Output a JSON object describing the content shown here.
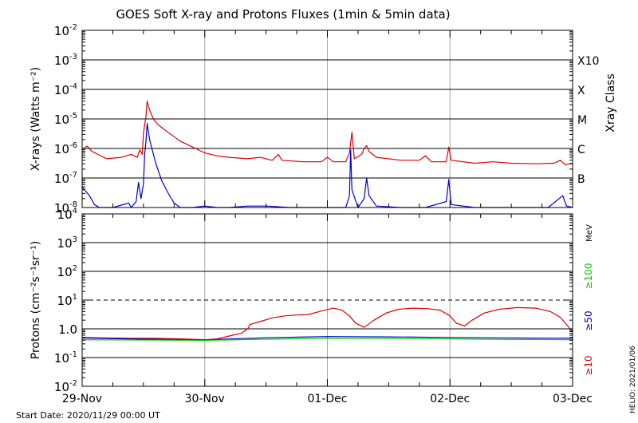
{
  "chart_data": {
    "type": "line",
    "title": "GOES Soft X-ray and Protons Fluxes   (1min & 5min data)",
    "footer_start": "Start Date: 2020/11/29 00:00 UT",
    "footer_credit": "HELIO: 2021/01/06",
    "x_tick_labels": [
      "29-Nov",
      "30-Nov",
      "01-Dec",
      "02-Dec",
      "03-Dec"
    ],
    "x_range_days": [
      0,
      4
    ],
    "panels": [
      {
        "id": "xray",
        "ylabel": "X-rays (Watts m⁻²)",
        "yscale": "log",
        "y_exponent_range": [
          -8,
          -2
        ],
        "y_tick_labels": [
          {
            "mant": "10",
            "exp": "-8"
          },
          {
            "mant": "10",
            "exp": "-7"
          },
          {
            "mant": "10",
            "exp": "-6"
          },
          {
            "mant": "10",
            "exp": "-5"
          },
          {
            "mant": "10",
            "exp": "-4"
          },
          {
            "mant": "10",
            "exp": "-3"
          },
          {
            "mant": "10",
            "exp": "-2"
          }
        ],
        "right_axis_title": "Xray Class",
        "class_labels": [
          {
            "label": "B",
            "exp": -7
          },
          {
            "label": "C",
            "exp": -6
          },
          {
            "label": "M",
            "exp": -5
          },
          {
            "label": "X",
            "exp": -4
          },
          {
            "label": "X10",
            "exp": -3
          }
        ],
        "series": [
          {
            "color": "#dd0000",
            "points": [
              [
                0,
                -6.05
              ],
              [
                0.04,
                -5.92
              ],
              [
                0.08,
                -6.1
              ],
              [
                0.2,
                -6.35
              ],
              [
                0.32,
                -6.3
              ],
              [
                0.4,
                -6.2
              ],
              [
                0.45,
                -6.3
              ],
              [
                0.47,
                -6.05
              ],
              [
                0.49,
                -6.2
              ],
              [
                0.5,
                -5.5
              ],
              [
                0.51,
                -5.2
              ],
              [
                0.52,
                -4.95
              ],
              [
                0.53,
                -4.4
              ],
              [
                0.55,
                -4.7
              ],
              [
                0.58,
                -5.0
              ],
              [
                0.62,
                -5.2
              ],
              [
                0.7,
                -5.45
              ],
              [
                0.8,
                -5.75
              ],
              [
                0.9,
                -5.95
              ],
              [
                1.0,
                -6.15
              ],
              [
                1.1,
                -6.25
              ],
              [
                1.2,
                -6.3
              ],
              [
                1.35,
                -6.35
              ],
              [
                1.45,
                -6.3
              ],
              [
                1.55,
                -6.4
              ],
              [
                1.6,
                -6.2
              ],
              [
                1.63,
                -6.4
              ],
              [
                1.8,
                -6.45
              ],
              [
                1.95,
                -6.45
              ],
              [
                2.0,
                -6.3
              ],
              [
                2.05,
                -6.45
              ],
              [
                2.15,
                -6.45
              ],
              [
                2.18,
                -6.15
              ],
              [
                2.2,
                -5.45
              ],
              [
                2.22,
                -6.35
              ],
              [
                2.28,
                -6.2
              ],
              [
                2.3,
                -6.0
              ],
              [
                2.32,
                -5.9
              ],
              [
                2.34,
                -6.1
              ],
              [
                2.4,
                -6.3
              ],
              [
                2.6,
                -6.4
              ],
              [
                2.75,
                -6.4
              ],
              [
                2.8,
                -6.25
              ],
              [
                2.85,
                -6.45
              ],
              [
                2.97,
                -6.45
              ],
              [
                2.99,
                -5.95
              ],
              [
                3.01,
                -6.4
              ],
              [
                3.2,
                -6.5
              ],
              [
                3.35,
                -6.45
              ],
              [
                3.5,
                -6.5
              ],
              [
                3.7,
                -6.52
              ],
              [
                3.85,
                -6.5
              ],
              [
                3.9,
                -6.4
              ],
              [
                3.94,
                -6.55
              ],
              [
                4.0,
                -6.5
              ]
            ]
          },
          {
            "color": "#0000cc",
            "points": [
              [
                0,
                -7.3
              ],
              [
                0.06,
                -7.6
              ],
              [
                0.1,
                -7.9
              ],
              [
                0.14,
                -8.0
              ],
              [
                0.25,
                -8.0
              ],
              [
                0.38,
                -7.85
              ],
              [
                0.4,
                -8.0
              ],
              [
                0.44,
                -7.8
              ],
              [
                0.46,
                -7.15
              ],
              [
                0.48,
                -7.7
              ],
              [
                0.5,
                -7.2
              ],
              [
                0.51,
                -6.2
              ],
              [
                0.52,
                -5.8
              ],
              [
                0.53,
                -5.15
              ],
              [
                0.55,
                -5.7
              ],
              [
                0.6,
                -6.5
              ],
              [
                0.65,
                -7.1
              ],
              [
                0.7,
                -7.5
              ],
              [
                0.75,
                -7.85
              ],
              [
                0.8,
                -8.0
              ],
              [
                0.9,
                -8.0
              ],
              [
                1.0,
                -7.95
              ],
              [
                1.1,
                -8.0
              ],
              [
                1.2,
                -8.0
              ],
              [
                1.35,
                -7.95
              ],
              [
                1.5,
                -7.95
              ],
              [
                1.7,
                -8.0
              ],
              [
                1.9,
                -8.0
              ],
              [
                2.05,
                -8.0
              ],
              [
                2.15,
                -8.0
              ],
              [
                2.18,
                -7.6
              ],
              [
                2.19,
                -6.05
              ],
              [
                2.2,
                -7.4
              ],
              [
                2.25,
                -8.0
              ],
              [
                2.3,
                -7.7
              ],
              [
                2.32,
                -7.0
              ],
              [
                2.34,
                -7.6
              ],
              [
                2.4,
                -7.95
              ],
              [
                2.6,
                -8.0
              ],
              [
                2.8,
                -8.0
              ],
              [
                2.97,
                -7.8
              ],
              [
                2.99,
                -7.05
              ],
              [
                3.01,
                -7.9
              ],
              [
                3.2,
                -8.0
              ],
              [
                3.5,
                -8.0
              ],
              [
                3.8,
                -8.0
              ],
              [
                3.92,
                -7.6
              ],
              [
                3.95,
                -7.95
              ],
              [
                4.0,
                -8.0
              ]
            ]
          }
        ]
      },
      {
        "id": "protons",
        "ylabel": "Protons (cm⁻²s⁻¹sr⁻¹)",
        "yscale": "log",
        "y_exponent_range": [
          -2,
          4
        ],
        "y_tick_labels": [
          {
            "mant": "10",
            "exp": "-2"
          },
          {
            "mant": "10",
            "exp": "-1"
          },
          {
            "mant": "1.0",
            "exp": ""
          },
          {
            "mant": "10",
            "exp": "1"
          },
          {
            "mant": "10",
            "exp": "2"
          },
          {
            "mant": "10",
            "exp": "3"
          },
          {
            "mant": "10",
            "exp": "4"
          }
        ],
        "right_unit": "MeV",
        "threshold_exp": 1,
        "series": [
          {
            "name": "≥10",
            "color": "#dd0000",
            "points": [
              [
                0,
                -0.3
              ],
              [
                0.2,
                -0.32
              ],
              [
                0.4,
                -0.33
              ],
              [
                0.6,
                -0.33
              ],
              [
                0.8,
                -0.35
              ],
              [
                1.0,
                -0.38
              ],
              [
                1.1,
                -0.35
              ],
              [
                1.2,
                -0.25
              ],
              [
                1.3,
                -0.15
              ],
              [
                1.35,
                0.0
              ],
              [
                1.37,
                0.15
              ],
              [
                1.45,
                0.25
              ],
              [
                1.55,
                0.38
              ],
              [
                1.65,
                0.45
              ],
              [
                1.75,
                0.48
              ],
              [
                1.85,
                0.5
              ],
              [
                1.95,
                0.62
              ],
              [
                2.05,
                0.72
              ],
              [
                2.12,
                0.65
              ],
              [
                2.18,
                0.45
              ],
              [
                2.23,
                0.2
              ],
              [
                2.3,
                0.05
              ],
              [
                2.38,
                0.3
              ],
              [
                2.48,
                0.55
              ],
              [
                2.58,
                0.68
              ],
              [
                2.7,
                0.72
              ],
              [
                2.82,
                0.7
              ],
              [
                2.92,
                0.65
              ],
              [
                3.0,
                0.45
              ],
              [
                3.05,
                0.2
              ],
              [
                3.12,
                0.1
              ],
              [
                3.18,
                0.3
              ],
              [
                3.28,
                0.55
              ],
              [
                3.4,
                0.68
              ],
              [
                3.55,
                0.74
              ],
              [
                3.7,
                0.72
              ],
              [
                3.82,
                0.6
              ],
              [
                3.9,
                0.4
              ],
              [
                3.96,
                0.1
              ],
              [
                4.0,
                -0.1
              ]
            ]
          },
          {
            "name": "≥50",
            "color": "#0000cc",
            "points": [
              [
                0,
                -0.32
              ],
              [
                0.5,
                -0.36
              ],
              [
                1.0,
                -0.38
              ],
              [
                1.5,
                -0.31
              ],
              [
                2.0,
                -0.27
              ],
              [
                2.5,
                -0.28
              ],
              [
                3.0,
                -0.3
              ],
              [
                3.5,
                -0.32
              ],
              [
                4.0,
                -0.33
              ]
            ]
          },
          {
            "name": "≥100",
            "color": "#00cc00",
            "points": [
              [
                0,
                -0.38
              ],
              [
                0.5,
                -0.39
              ],
              [
                1.0,
                -0.4
              ],
              [
                1.5,
                -0.36
              ],
              [
                2.0,
                -0.33
              ],
              [
                2.5,
                -0.34
              ],
              [
                3.0,
                -0.35
              ],
              [
                3.5,
                -0.37
              ],
              [
                4.0,
                -0.38
              ]
            ]
          }
        ]
      }
    ]
  }
}
